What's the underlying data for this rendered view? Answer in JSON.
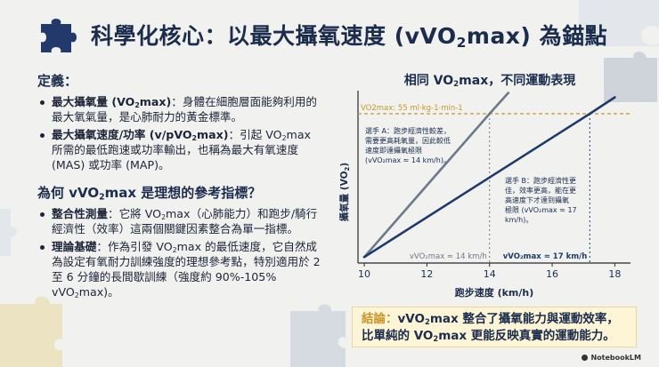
{
  "title": {
    "prefix": "科學化核心：以最大攝氧速度 (vVO",
    "sub": "2",
    "suffix": "max) 為錨點"
  },
  "definitions": {
    "heading": "定義：",
    "items": [
      {
        "label_pre": "最大攝氧量 (VO",
        "label_sub": "2",
        "label_post": "max)",
        "text": "：身體在細胞層面能夠利用的最大氧氣量，是心肺耐力的黃金標準。"
      },
      {
        "label_pre": "最大攝氧速度/功率 (v/pVO",
        "label_sub": "2",
        "label_post": "max)",
        "text_pre": "：引起 VO",
        "text_sub": "2",
        "text_post": "max 所需的最低跑速或功率輸出，也稱為最大有氧速度 (MAS) 或功率 (MAP)。"
      }
    ]
  },
  "why": {
    "heading_pre": "為何 vVO",
    "heading_sub": "2",
    "heading_post": "max 是理想的參考指標？",
    "items": [
      {
        "label": "整合性測量",
        "text_pre": "：它將 VO",
        "text_sub": "2",
        "text_post": "max（心肺能力）和跑步/騎行經濟性（效率）這兩個關鍵因素整合為單一指標。"
      },
      {
        "label": "理論基礎",
        "text_pre": "：作為引發 VO",
        "text_sub": "2",
        "text_post": "max 的最低速度，它自然成為設定有氧耐力訓練強度的理想參考點，特別適用於 2 至 6 分鐘的長間歇訓練（強度約 90%-105% vVO",
        "text_sub2": "2",
        "text_post2": "max)。"
      }
    ]
  },
  "chart_data": {
    "type": "line",
    "title_pre": "相同 VO",
    "title_sub": "2",
    "title_post": "max，不同運動表現",
    "xlabel": "跑步速度 (km/h)",
    "ylabel_pre": "攝氧量 (VO",
    "ylabel_sub": "2",
    "ylabel_post": ")",
    "xlim": [
      9.8,
      18.5
    ],
    "xticks": [
      10,
      12,
      14,
      16,
      18
    ],
    "vo2max_line_label": "VO2max: 55 ml·kg-1·min-1",
    "series": [
      {
        "name": "選手 A",
        "color": "#6d7888",
        "points": [
          [
            10,
            0.04
          ],
          [
            14,
            1.0
          ],
          [
            14.6,
            1.14
          ]
        ],
        "vvo2max": 14,
        "vvo2max_label": "vVO₂max ≈ 14 km/h"
      },
      {
        "name": "選手 B",
        "color": "#1d3a6b",
        "points": [
          [
            10,
            0.04
          ],
          [
            17.2,
            1.0
          ],
          [
            18,
            1.11
          ]
        ],
        "vvo2max": 17.2,
        "vvo2max_label": "vVO₂max ≈ 17 km/h"
      }
    ],
    "annotation_a": [
      "選手 A：跑步經濟性較差，",
      "需要更高耗氧量，因此較低",
      "速度即達攝氧極限",
      "(vVO₂max ≈ 14 km/h)。"
    ],
    "annotation_b": [
      "選手 B：跑步經濟性更",
      "佳，效率更高，能在更",
      "高速度下才達到攝氧",
      "極限 (vVO₂max ≈ 17",
      "km/h)。"
    ],
    "colors": {
      "limit": "#c8962a",
      "axis": "#2a2a2a"
    }
  },
  "conclusion": {
    "tag": "結論：",
    "line1_pre": "vVO",
    "line1_sub": "2",
    "line1_post": "max 整合了攝氧能力與運動效率，",
    "line2_pre": "比單純的 VO",
    "line2_sub": "2",
    "line2_post": "max 更能反映真實的運動能力。"
  },
  "logo_text": "NotebookLM"
}
